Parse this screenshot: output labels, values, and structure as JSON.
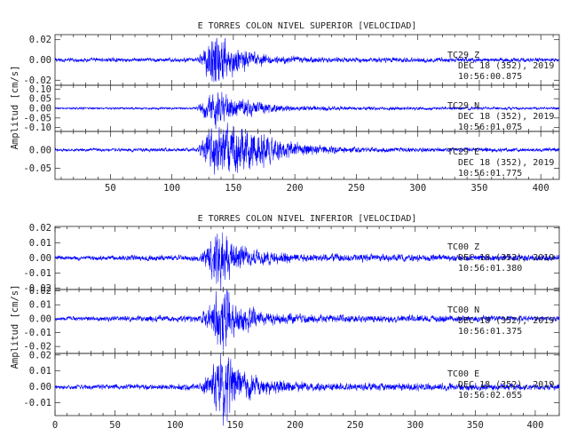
{
  "chart_data": [
    {
      "type": "line",
      "title": "E TORRES COLON NIVEL SUPERIOR [VELOCIDAD]",
      "ylabel": "Amplitud [cm/s]",
      "xlim": [
        5,
        415
      ],
      "x_ticks": [
        50,
        100,
        150,
        200,
        250,
        300,
        350,
        400
      ],
      "color": "#0000ff",
      "panels": [
        {
          "station": "TC29",
          "component": "Z",
          "date": "DEC 18 (352), 2019",
          "time": "10:56:00.875",
          "ylim": [
            -0.025,
            0.025
          ],
          "y_ticks": [
            0.02,
            0.0,
            -0.02
          ],
          "y_tick_labels": [
            "0.02",
            "0.00",
            "-0.02"
          ],
          "envelope": [
            [
              5,
              0.0015
            ],
            [
              120,
              0.0015
            ],
            [
              125,
              0.006
            ],
            [
              134,
              0.022
            ],
            [
              137,
              0.024
            ],
            [
              140,
              0.02
            ],
            [
              146,
              0.014
            ],
            [
              152,
              0.01
            ],
            [
              165,
              0.006
            ],
            [
              185,
              0.003
            ],
            [
              230,
              0.002
            ],
            [
              330,
              0.0018
            ],
            [
              415,
              0.0015
            ]
          ]
        },
        {
          "station": "TC29",
          "component": "N",
          "date": "DEC 18 (352), 2019",
          "time": "10:56:01.075",
          "ylim": [
            -0.12,
            0.12
          ],
          "y_ticks": [
            0.1,
            0.05,
            0.0,
            -0.05,
            -0.1
          ],
          "y_tick_labels": [
            "0.10",
            "0.05",
            "0.00",
            "-0.05",
            "-0.10"
          ],
          "envelope": [
            [
              5,
              0.004
            ],
            [
              120,
              0.005
            ],
            [
              125,
              0.03
            ],
            [
              133,
              0.06
            ],
            [
              137,
              0.085
            ],
            [
              141,
              0.06
            ],
            [
              150,
              0.04
            ],
            [
              165,
              0.03
            ],
            [
              180,
              0.018
            ],
            [
              200,
              0.01
            ],
            [
              260,
              0.007
            ],
            [
              415,
              0.005
            ]
          ]
        },
        {
          "station": "TC29",
          "component": "E",
          "date": "DEC 18 (352), 2019",
          "time": "10:56:01.775",
          "ylim": [
            -0.08,
            0.05
          ],
          "y_ticks": [
            0.0,
            -0.05
          ],
          "y_tick_labels": [
            "0.00",
            "-0.05"
          ],
          "envelope": [
            [
              5,
              0.003
            ],
            [
              120,
              0.004
            ],
            [
              128,
              0.03
            ],
            [
              135,
              0.05
            ],
            [
              140,
              0.045
            ],
            [
              150,
              0.045
            ],
            [
              165,
              0.04
            ],
            [
              185,
              0.025
            ],
            [
              200,
              0.015
            ],
            [
              230,
              0.008
            ],
            [
              260,
              0.005
            ],
            [
              415,
              0.004
            ]
          ]
        }
      ]
    },
    {
      "type": "line",
      "title": "E TORRES COLON NIVEL INFERIOR [VELOCIDAD]",
      "ylabel": "Amplitud [cm/s]",
      "xlim": [
        0,
        420
      ],
      "x_ticks": [
        0,
        50,
        100,
        150,
        200,
        250,
        300,
        350,
        400
      ],
      "color": "#0000ff",
      "panels": [
        {
          "station": "TC00",
          "component": "Z",
          "date": "DEC 18 (352), 2019",
          "time": "10:56:01.380",
          "ylim": [
            -0.021,
            0.021
          ],
          "y_ticks": [
            0.02,
            0.01,
            0.0,
            -0.01,
            -0.02
          ],
          "y_tick_labels": [
            "0.02",
            "0.01",
            "0.00",
            "-0.01",
            "-0.02"
          ],
          "envelope": [
            [
              0,
              0.001
            ],
            [
              120,
              0.0015
            ],
            [
              128,
              0.007
            ],
            [
              138,
              0.016
            ],
            [
              141,
              0.012
            ],
            [
              150,
              0.008
            ],
            [
              165,
              0.004
            ],
            [
              200,
              0.002
            ],
            [
              420,
              0.0015
            ]
          ]
        },
        {
          "station": "TC00",
          "component": "N",
          "date": "DEC 18 (352), 2019",
          "time": "10:56:01.375",
          "ylim": [
            -0.025,
            0.021
          ],
          "y_ticks": [
            0.02,
            0.01,
            0.0,
            -0.01,
            -0.02
          ],
          "y_tick_labels": [
            "0.02",
            "0.01",
            "0.00",
            "-0.01",
            "-0.02"
          ],
          "envelope": [
            [
              0,
              0.001
            ],
            [
              120,
              0.002
            ],
            [
              128,
              0.007
            ],
            [
              138,
              0.018
            ],
            [
              142,
              0.02
            ],
            [
              146,
              0.012
            ],
            [
              155,
              0.008
            ],
            [
              170,
              0.004
            ],
            [
              220,
              0.002
            ],
            [
              420,
              0.0015
            ]
          ]
        },
        {
          "station": "TC00",
          "component": "E",
          "date": "DEC 18 (352), 2019",
          "time": "10:56:02.055",
          "ylim": [
            -0.018,
            0.021
          ],
          "y_ticks": [
            0.02,
            0.01,
            0.0,
            -0.01
          ],
          "y_tick_labels": [
            "0.02",
            "0.01",
            "0.00",
            "-0.01"
          ],
          "envelope": [
            [
              0,
              0.001
            ],
            [
              120,
              0.0015
            ],
            [
              128,
              0.006
            ],
            [
              137,
              0.014
            ],
            [
              142,
              0.018
            ],
            [
              147,
              0.012
            ],
            [
              155,
              0.008
            ],
            [
              170,
              0.004
            ],
            [
              210,
              0.002
            ],
            [
              420,
              0.0015
            ]
          ]
        }
      ]
    }
  ]
}
